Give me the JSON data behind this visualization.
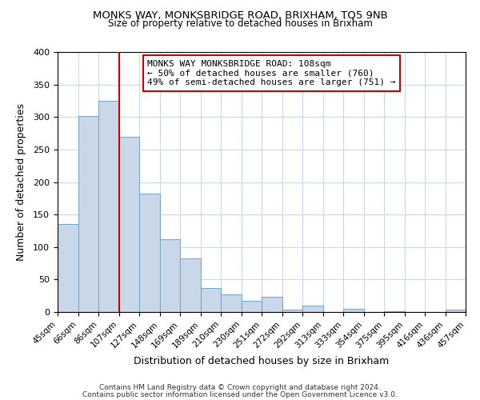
{
  "title": "MONKS WAY, MONKSBRIDGE ROAD, BRIXHAM, TQ5 9NB",
  "subtitle": "Size of property relative to detached houses in Brixham",
  "xlabel": "Distribution of detached houses by size in Brixham",
  "ylabel": "Number of detached properties",
  "bar_labels": [
    "45sqm",
    "66sqm",
    "86sqm",
    "107sqm",
    "127sqm",
    "148sqm",
    "169sqm",
    "189sqm",
    "210sqm",
    "230sqm",
    "251sqm",
    "272sqm",
    "292sqm",
    "313sqm",
    "333sqm",
    "354sqm",
    "375sqm",
    "395sqm",
    "416sqm",
    "436sqm",
    "457sqm"
  ],
  "bar_values": [
    135,
    302,
    325,
    270,
    182,
    112,
    83,
    37,
    27,
    17,
    24,
    4,
    10,
    0,
    5,
    0,
    1,
    0,
    0,
    4
  ],
  "bar_color": "#c8d8e8",
  "bar_edge_color": "#7aaac8",
  "vline_x": 3,
  "vline_color": "#cc0000",
  "annotation_line1": "MONKS WAY MONKSBRIDGE ROAD: 108sqm",
  "annotation_line2": "← 50% of detached houses are smaller (760)",
  "annotation_line3": "49% of semi-detached houses are larger (751) →",
  "annotation_box_color": "#ffffff",
  "annotation_box_edge": "#cc0000",
  "ylim": [
    0,
    400
  ],
  "yticks": [
    0,
    50,
    100,
    150,
    200,
    250,
    300,
    350,
    400
  ],
  "footer1": "Contains HM Land Registry data © Crown copyright and database right 2024.",
  "footer2": "Contains public sector information licensed under the Open Government Licence v3.0.",
  "background_color": "#ffffff",
  "grid_color": "#c8d8e8",
  "title_fontsize": 9.5,
  "subtitle_fontsize": 8.5
}
